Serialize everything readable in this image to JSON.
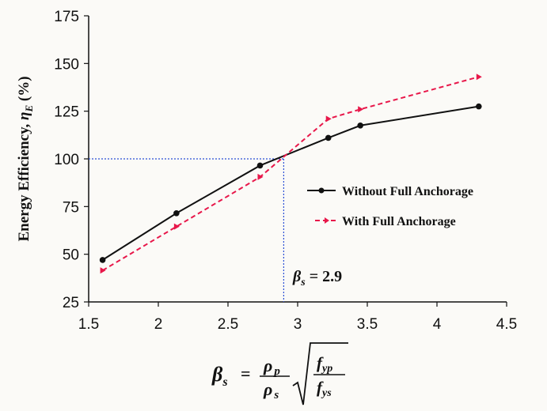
{
  "chart_data": {
    "type": "line",
    "ylabel_main": "Energy Efficiency, ",
    "ylabel_symbol": "η",
    "ylabel_sub": "E",
    "ylabel_unit": " (%)",
    "xlim": [
      1.5,
      4.5
    ],
    "ylim": [
      25,
      175
    ],
    "x_ticks": [
      "1.5",
      "2",
      "2.5",
      "3",
      "3.5",
      "4",
      "4.5"
    ],
    "y_ticks": [
      "25",
      "50",
      "75",
      "100",
      "125",
      "150",
      "175"
    ],
    "grid": false,
    "legend_position": "right",
    "series": [
      {
        "name": "Without Full Anchorage",
        "color": "#111111",
        "style": "solid",
        "marker": "circle",
        "points": [
          [
            1.6,
            47
          ],
          [
            2.13,
            71.5
          ],
          [
            2.73,
            96.5
          ],
          [
            3.22,
            111
          ],
          [
            3.45,
            117.5
          ],
          [
            4.3,
            127.5
          ]
        ]
      },
      {
        "name": "With Full Anchorage",
        "color": "#e8174a",
        "style": "dashed",
        "marker": "triangle",
        "points": [
          [
            1.6,
            41.5
          ],
          [
            2.13,
            64.5
          ],
          [
            2.73,
            90.5
          ],
          [
            3.22,
            121
          ],
          [
            3.45,
            126
          ],
          [
            4.3,
            143
          ]
        ]
      }
    ],
    "reference_lines": {
      "color": "#2b4fd6",
      "x_value": 2.9,
      "y_value": 100
    },
    "annotation": {
      "symbol": "β",
      "sub": "s",
      "text": " = 2.9"
    },
    "xlabel_formula": {
      "lhs": "β",
      "lhs_sub": "s",
      "equals": "=",
      "num": "ρ",
      "num_sub": "p",
      "den": "ρ",
      "den_sub": "s",
      "root_num": "f",
      "root_num_sub": "yp",
      "root_den": "f",
      "root_den_sub": "ys"
    }
  }
}
